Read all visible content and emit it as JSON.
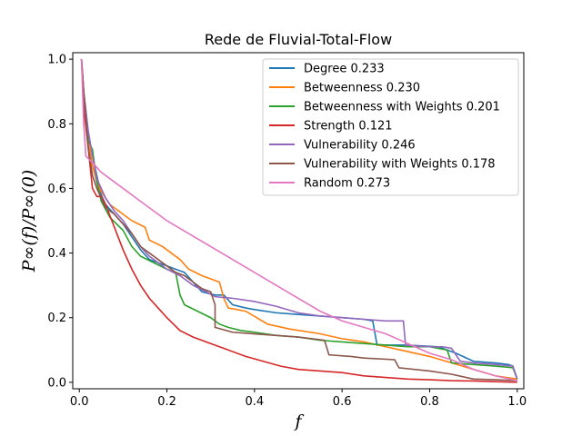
{
  "chart_data": {
    "type": "line",
    "title": "Rede de Fluvial-Total-Flow",
    "xlabel": "f",
    "ylabel": "P∞(f)/P∞(0)",
    "xlim": [
      -0.015,
      1.015
    ],
    "ylim": [
      -0.02,
      1.02
    ],
    "xticks": [
      0.0,
      0.2,
      0.4,
      0.6,
      0.8,
      1.0
    ],
    "yticks": [
      0.0,
      0.2,
      0.4,
      0.6,
      0.8,
      1.0
    ],
    "tick_labels": [
      "0.0",
      "0.2",
      "0.4",
      "0.6",
      "0.8",
      "1.0"
    ],
    "legend_position": "top-right",
    "grid": false,
    "series": [
      {
        "name": "Degree 0.233",
        "color": "#1f77b4",
        "points": [
          [
            0.005,
            1.0
          ],
          [
            0.01,
            0.9
          ],
          [
            0.02,
            0.78
          ],
          [
            0.03,
            0.7
          ],
          [
            0.04,
            0.64
          ],
          [
            0.05,
            0.58
          ],
          [
            0.06,
            0.55
          ],
          [
            0.08,
            0.52
          ],
          [
            0.1,
            0.49
          ],
          [
            0.12,
            0.45
          ],
          [
            0.14,
            0.41
          ],
          [
            0.16,
            0.38
          ],
          [
            0.18,
            0.37
          ],
          [
            0.2,
            0.36
          ],
          [
            0.22,
            0.35
          ],
          [
            0.24,
            0.34
          ],
          [
            0.26,
            0.31
          ],
          [
            0.28,
            0.28
          ],
          [
            0.31,
            0.27
          ],
          [
            0.33,
            0.27
          ],
          [
            0.35,
            0.24
          ],
          [
            0.38,
            0.23
          ],
          [
            0.4,
            0.225
          ],
          [
            0.45,
            0.215
          ],
          [
            0.5,
            0.21
          ],
          [
            0.55,
            0.205
          ],
          [
            0.6,
            0.2
          ],
          [
            0.65,
            0.195
          ],
          [
            0.67,
            0.19
          ],
          [
            0.68,
            0.115
          ],
          [
            0.75,
            0.115
          ],
          [
            0.82,
            0.11
          ],
          [
            0.86,
            0.09
          ],
          [
            0.9,
            0.065
          ],
          [
            0.95,
            0.06
          ],
          [
            0.98,
            0.055
          ],
          [
            0.99,
            0.05
          ],
          [
            1.0,
            0.01
          ]
        ]
      },
      {
        "name": "Betweenness 0.230",
        "color": "#ff7f0e",
        "points": [
          [
            0.005,
            1.0
          ],
          [
            0.01,
            0.9
          ],
          [
            0.02,
            0.75
          ],
          [
            0.03,
            0.67
          ],
          [
            0.04,
            0.62
          ],
          [
            0.05,
            0.59
          ],
          [
            0.07,
            0.55
          ],
          [
            0.09,
            0.53
          ],
          [
            0.1,
            0.52
          ],
          [
            0.12,
            0.5
          ],
          [
            0.15,
            0.48
          ],
          [
            0.16,
            0.44
          ],
          [
            0.19,
            0.42
          ],
          [
            0.21,
            0.4
          ],
          [
            0.23,
            0.38
          ],
          [
            0.25,
            0.35
          ],
          [
            0.28,
            0.33
          ],
          [
            0.3,
            0.32
          ],
          [
            0.32,
            0.31
          ],
          [
            0.33,
            0.26
          ],
          [
            0.34,
            0.23
          ],
          [
            0.38,
            0.22
          ],
          [
            0.43,
            0.18
          ],
          [
            0.48,
            0.165
          ],
          [
            0.55,
            0.15
          ],
          [
            0.6,
            0.135
          ],
          [
            0.65,
            0.125
          ],
          [
            0.7,
            0.11
          ],
          [
            0.75,
            0.095
          ],
          [
            0.8,
            0.08
          ],
          [
            0.85,
            0.06
          ],
          [
            0.9,
            0.04
          ],
          [
            0.95,
            0.02
          ],
          [
            1.0,
            0.01
          ]
        ]
      },
      {
        "name": "Betweenness with Weights 0.201",
        "color": "#2ca02c",
        "points": [
          [
            0.005,
            1.0
          ],
          [
            0.01,
            0.9
          ],
          [
            0.02,
            0.75
          ],
          [
            0.03,
            0.72
          ],
          [
            0.04,
            0.62
          ],
          [
            0.05,
            0.56
          ],
          [
            0.07,
            0.51
          ],
          [
            0.1,
            0.47
          ],
          [
            0.12,
            0.42
          ],
          [
            0.14,
            0.39
          ],
          [
            0.17,
            0.37
          ],
          [
            0.2,
            0.35
          ],
          [
            0.22,
            0.34
          ],
          [
            0.23,
            0.27
          ],
          [
            0.24,
            0.24
          ],
          [
            0.27,
            0.22
          ],
          [
            0.3,
            0.2
          ],
          [
            0.32,
            0.18
          ],
          [
            0.34,
            0.17
          ],
          [
            0.37,
            0.16
          ],
          [
            0.4,
            0.155
          ],
          [
            0.45,
            0.145
          ],
          [
            0.5,
            0.14
          ],
          [
            0.55,
            0.13
          ],
          [
            0.6,
            0.125
          ],
          [
            0.65,
            0.12
          ],
          [
            0.7,
            0.115
          ],
          [
            0.75,
            0.11
          ],
          [
            0.8,
            0.11
          ],
          [
            0.84,
            0.1
          ],
          [
            0.85,
            0.06
          ],
          [
            0.9,
            0.055
          ],
          [
            0.95,
            0.05
          ],
          [
            0.99,
            0.045
          ],
          [
            1.0,
            0.01
          ]
        ]
      },
      {
        "name": "Strength 0.121",
        "color": "#d62728",
        "points": [
          [
            0.005,
            1.0
          ],
          [
            0.01,
            0.85
          ],
          [
            0.02,
            0.73
          ],
          [
            0.03,
            0.6
          ],
          [
            0.04,
            0.575
          ],
          [
            0.05,
            0.575
          ],
          [
            0.06,
            0.55
          ],
          [
            0.08,
            0.48
          ],
          [
            0.1,
            0.41
          ],
          [
            0.12,
            0.35
          ],
          [
            0.14,
            0.3
          ],
          [
            0.16,
            0.26
          ],
          [
            0.18,
            0.23
          ],
          [
            0.2,
            0.2
          ],
          [
            0.23,
            0.16
          ],
          [
            0.26,
            0.14
          ],
          [
            0.3,
            0.12
          ],
          [
            0.34,
            0.1
          ],
          [
            0.38,
            0.08
          ],
          [
            0.42,
            0.065
          ],
          [
            0.46,
            0.05
          ],
          [
            0.5,
            0.04
          ],
          [
            0.55,
            0.035
          ],
          [
            0.6,
            0.03
          ],
          [
            0.65,
            0.02
          ],
          [
            0.7,
            0.015
          ],
          [
            0.75,
            0.01
          ],
          [
            0.8,
            0.008
          ],
          [
            0.85,
            0.005
          ],
          [
            0.9,
            0.004
          ],
          [
            0.95,
            0.002
          ],
          [
            1.0,
            0.0
          ]
        ]
      },
      {
        "name": "Vulnerability 0.246",
        "color": "#9467bd",
        "points": [
          [
            0.005,
            1.0
          ],
          [
            0.01,
            0.9
          ],
          [
            0.02,
            0.78
          ],
          [
            0.03,
            0.7
          ],
          [
            0.04,
            0.63
          ],
          [
            0.06,
            0.57
          ],
          [
            0.08,
            0.53
          ],
          [
            0.1,
            0.5
          ],
          [
            0.12,
            0.46
          ],
          [
            0.14,
            0.42
          ],
          [
            0.16,
            0.39
          ],
          [
            0.18,
            0.37
          ],
          [
            0.2,
            0.35
          ],
          [
            0.23,
            0.33
          ],
          [
            0.26,
            0.3
          ],
          [
            0.29,
            0.28
          ],
          [
            0.31,
            0.265
          ],
          [
            0.35,
            0.26
          ],
          [
            0.4,
            0.25
          ],
          [
            0.45,
            0.235
          ],
          [
            0.5,
            0.215
          ],
          [
            0.55,
            0.205
          ],
          [
            0.6,
            0.2
          ],
          [
            0.65,
            0.195
          ],
          [
            0.7,
            0.19
          ],
          [
            0.74,
            0.19
          ],
          [
            0.745,
            0.115
          ],
          [
            0.8,
            0.11
          ],
          [
            0.83,
            0.11
          ],
          [
            0.85,
            0.105
          ],
          [
            0.87,
            0.065
          ],
          [
            0.9,
            0.06
          ],
          [
            0.95,
            0.055
          ],
          [
            0.99,
            0.05
          ],
          [
            1.0,
            0.01
          ]
        ]
      },
      {
        "name": "Vulnerability with Weights 0.178",
        "color": "#8c564b",
        "points": [
          [
            0.005,
            1.0
          ],
          [
            0.01,
            0.9
          ],
          [
            0.02,
            0.73
          ],
          [
            0.03,
            0.64
          ],
          [
            0.04,
            0.6
          ],
          [
            0.06,
            0.54
          ],
          [
            0.08,
            0.52
          ],
          [
            0.1,
            0.49
          ],
          [
            0.12,
            0.46
          ],
          [
            0.14,
            0.42
          ],
          [
            0.16,
            0.4
          ],
          [
            0.18,
            0.38
          ],
          [
            0.2,
            0.36
          ],
          [
            0.22,
            0.34
          ],
          [
            0.24,
            0.33
          ],
          [
            0.26,
            0.31
          ],
          [
            0.28,
            0.29
          ],
          [
            0.3,
            0.28
          ],
          [
            0.31,
            0.24
          ],
          [
            0.31,
            0.17
          ],
          [
            0.35,
            0.155
          ],
          [
            0.4,
            0.15
          ],
          [
            0.45,
            0.145
          ],
          [
            0.5,
            0.14
          ],
          [
            0.56,
            0.13
          ],
          [
            0.57,
            0.085
          ],
          [
            0.62,
            0.08
          ],
          [
            0.65,
            0.075
          ],
          [
            0.72,
            0.07
          ],
          [
            0.73,
            0.045
          ],
          [
            0.8,
            0.035
          ],
          [
            0.85,
            0.025
          ],
          [
            0.9,
            0.01
          ],
          [
            0.95,
            0.008
          ],
          [
            1.0,
            0.005
          ]
        ]
      },
      {
        "name": "Random 0.273",
        "color": "#e377c2",
        "points": [
          [
            0.005,
            1.0
          ],
          [
            0.01,
            0.8
          ],
          [
            0.015,
            0.7
          ],
          [
            0.03,
            0.68
          ],
          [
            0.05,
            0.65
          ],
          [
            0.08,
            0.62
          ],
          [
            0.1,
            0.6
          ],
          [
            0.13,
            0.57
          ],
          [
            0.16,
            0.54
          ],
          [
            0.2,
            0.5
          ],
          [
            0.25,
            0.46
          ],
          [
            0.3,
            0.42
          ],
          [
            0.35,
            0.38
          ],
          [
            0.4,
            0.34
          ],
          [
            0.45,
            0.3
          ],
          [
            0.5,
            0.26
          ],
          [
            0.55,
            0.22
          ],
          [
            0.6,
            0.19
          ],
          [
            0.65,
            0.17
          ],
          [
            0.7,
            0.15
          ],
          [
            0.75,
            0.12
          ],
          [
            0.8,
            0.09
          ],
          [
            0.85,
            0.07
          ],
          [
            0.9,
            0.04
          ],
          [
            0.95,
            0.02
          ],
          [
            1.0,
            0.005
          ]
        ]
      }
    ]
  }
}
